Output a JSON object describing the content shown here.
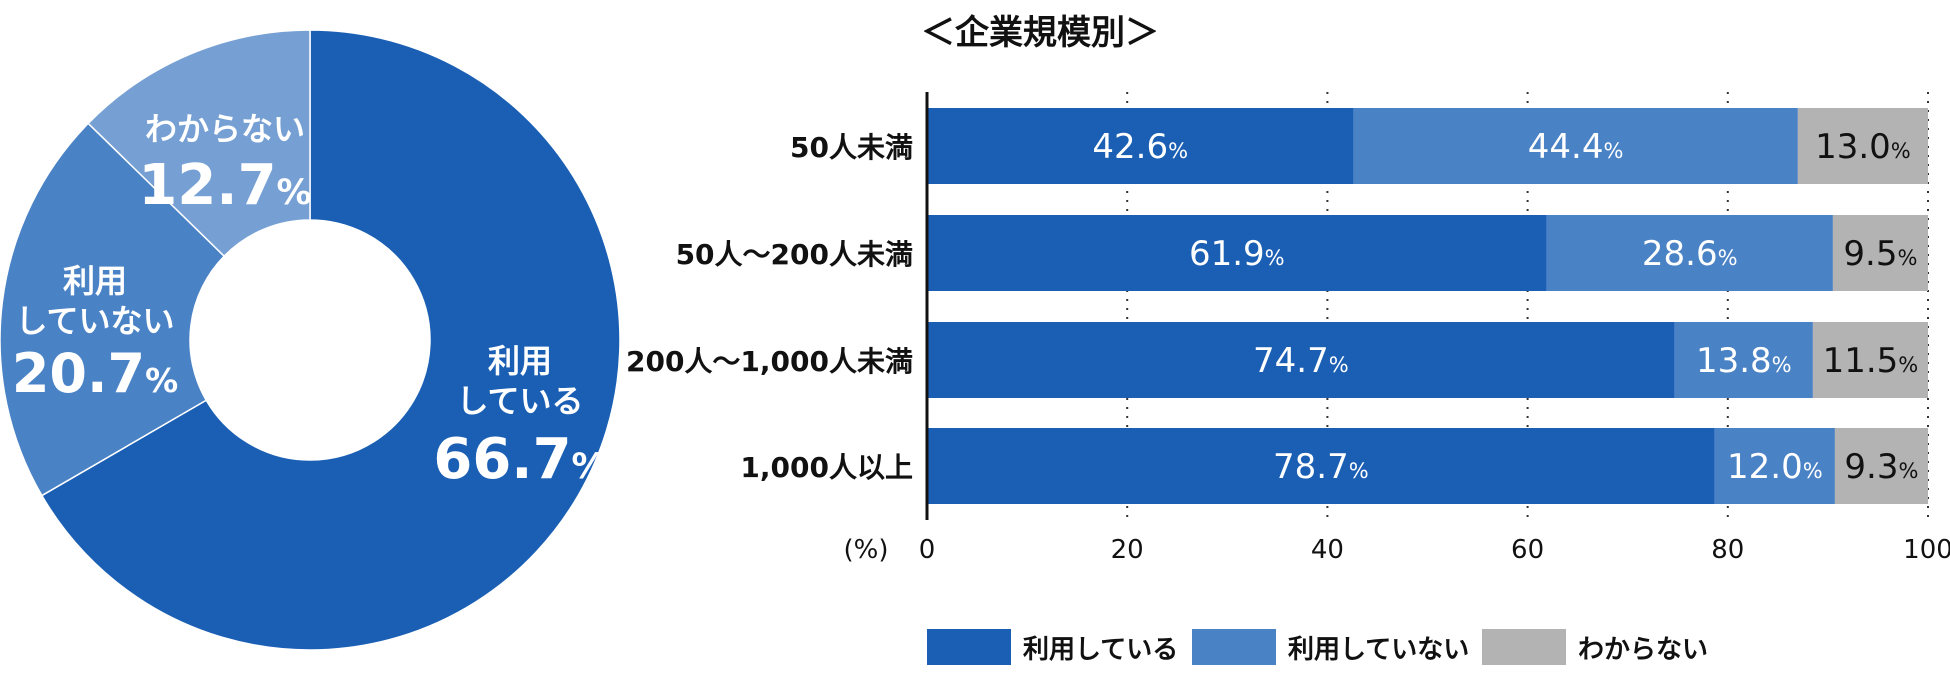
{
  "chart_data": [
    {
      "type": "pie",
      "style": "donut",
      "slices": [
        {
          "label_lines": [
            "利用",
            "している"
          ],
          "value": 66.7,
          "value_text": "66.7",
          "color": "#1a5fb4"
        },
        {
          "label_lines": [
            "利用",
            "していない"
          ],
          "value": 20.7,
          "value_text": "20.7",
          "color": "#4a82c6"
        },
        {
          "label_lines": [
            "わからない"
          ],
          "value": 12.7,
          "value_text": "12.7",
          "color": "#76a0d4"
        }
      ],
      "unit": "%"
    },
    {
      "type": "bar",
      "orientation": "horizontal",
      "stacked": true,
      "title": "＜企業規模別＞",
      "categories": [
        "50人未満",
        "50人～200人未満",
        "200人～1,000人未満",
        "1,000人以上"
      ],
      "series": [
        {
          "name": "利用している",
          "color": "#1a5fb4",
          "values": [
            42.6,
            61.9,
            74.7,
            78.7
          ]
        },
        {
          "name": "利用していない",
          "color": "#4a82c6",
          "values": [
            44.4,
            28.6,
            13.8,
            12.0
          ]
        },
        {
          "name": "わからない",
          "color": "#b3b3b3",
          "values": [
            13.0,
            9.5,
            11.5,
            9.3
          ]
        }
      ],
      "value_labels": [
        [
          "42.6",
          "44.4",
          "13.0"
        ],
        [
          "61.9",
          "28.6",
          "9.5"
        ],
        [
          "74.7",
          "13.8",
          "11.5"
        ],
        [
          "78.7",
          "12.0",
          "9.3"
        ]
      ],
      "unit": "%",
      "xlim": [
        0,
        100
      ],
      "xticks": [
        0,
        20,
        40,
        60,
        80,
        100
      ],
      "xlabel": "(%)",
      "grid": "dotted vertical",
      "legend": "bottom"
    }
  ]
}
